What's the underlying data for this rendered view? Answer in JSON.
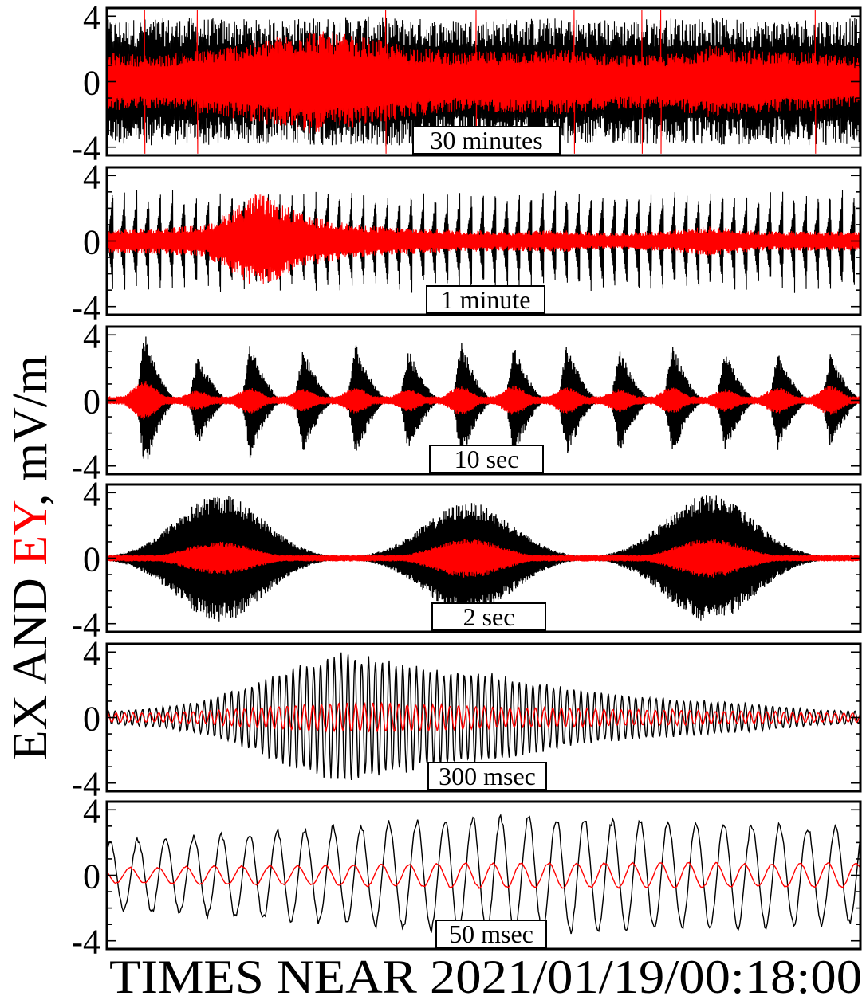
{
  "figure": {
    "ylabel_parts": [
      "EX AND ",
      "EY",
      ", mV/m"
    ],
    "xlabel": "TIMES NEAR 2021/01/19/00:18:00",
    "colors": {
      "ex": "#000000",
      "ey": "#ff0000",
      "frame": "#000000"
    }
  },
  "chart_data": [
    {
      "type": "line",
      "label": "30 minutes",
      "ylim": [
        -4.5,
        4.5
      ],
      "yticks": [
        4,
        0,
        -4
      ],
      "ytick_labels": [
        "4",
        "0",
        "-4"
      ],
      "series": [
        {
          "name": "EX",
          "color": "#000000",
          "envelope": [
            3.8,
            3.9,
            3.9,
            3.8,
            3.9,
            4.0,
            3.9,
            3.8,
            3.9,
            3.9,
            3.8,
            3.9,
            3.9,
            3.8,
            3.9,
            3.9
          ]
        },
        {
          "name": "EY",
          "color": "#ff0000",
          "envelope": [
            1.8,
            1.6,
            2.0,
            2.5,
            3.2,
            2.8,
            2.2,
            1.8,
            1.9,
            2.0,
            1.7,
            1.6,
            2.2,
            1.9,
            1.8,
            1.5
          ]
        }
      ]
    },
    {
      "type": "line",
      "label": "1 minute",
      "ylim": [
        -4.5,
        4.5
      ],
      "yticks": [
        4,
        0,
        -4
      ],
      "ytick_labels": [
        "4",
        "0",
        "-4"
      ],
      "burst_count": 63,
      "series": [
        {
          "name": "EX",
          "color": "#000000",
          "peak": 3.7
        },
        {
          "name": "EY",
          "color": "#ff0000",
          "envelope": [
            0.7,
            0.8,
            1.0,
            3.0,
            1.5,
            1.0,
            0.8,
            0.7,
            0.6,
            0.7,
            0.5,
            0.6,
            0.9,
            0.6,
            0.6,
            0.6
          ]
        }
      ]
    },
    {
      "type": "line",
      "label": "10 sec",
      "ylim": [
        -4.5,
        4.5
      ],
      "yticks": [
        4,
        0,
        -4
      ],
      "ytick_labels": [
        "4",
        "0",
        "-4"
      ],
      "bursts": [
        {
          "t": 0.05,
          "ex": 4.3,
          "ey": 1.2
        },
        {
          "t": 0.12,
          "ex": 2.8,
          "ey": 0.6
        },
        {
          "t": 0.19,
          "ex": 3.6,
          "ey": 0.8
        },
        {
          "t": 0.26,
          "ex": 3.3,
          "ey": 0.7
        },
        {
          "t": 0.33,
          "ex": 3.5,
          "ey": 0.8
        },
        {
          "t": 0.4,
          "ex": 3.2,
          "ey": 0.7
        },
        {
          "t": 0.47,
          "ex": 3.7,
          "ey": 0.9
        },
        {
          "t": 0.54,
          "ex": 3.5,
          "ey": 0.9
        },
        {
          "t": 0.61,
          "ex": 3.6,
          "ey": 0.8
        },
        {
          "t": 0.68,
          "ex": 3.3,
          "ey": 0.7
        },
        {
          "t": 0.75,
          "ex": 3.5,
          "ey": 0.8
        },
        {
          "t": 0.82,
          "ex": 3.2,
          "ey": 0.7
        },
        {
          "t": 0.89,
          "ex": 3.1,
          "ey": 0.8
        },
        {
          "t": 0.96,
          "ex": 3.0,
          "ey": 0.9
        }
      ]
    },
    {
      "type": "line",
      "label": "2 sec",
      "ylim": [
        -4.5,
        4.5
      ],
      "yticks": [
        4,
        0,
        -4
      ],
      "ytick_labels": [
        "4",
        "0",
        "-4"
      ],
      "bursts": [
        {
          "t": 0.15,
          "ex": 3.9,
          "ey": 1.0
        },
        {
          "t": 0.48,
          "ex": 3.4,
          "ey": 1.2
        },
        {
          "t": 0.8,
          "ex": 3.9,
          "ey": 1.2
        }
      ]
    },
    {
      "type": "line",
      "label": "300 msec",
      "ylim": [
        -4.5,
        4.5
      ],
      "yticks": [
        4,
        0,
        -4
      ],
      "ytick_labels": [
        "4",
        "0",
        "-4"
      ],
      "cycles": 110,
      "series": [
        {
          "name": "EX",
          "color": "#000000",
          "envelope": [
            0.4,
            0.6,
            1.0,
            2.0,
            3.2,
            4.0,
            3.6,
            3.0,
            2.8,
            2.3,
            1.7,
            1.4,
            1.2,
            1.0,
            0.8,
            0.5,
            0.4
          ]
        },
        {
          "name": "EY",
          "color": "#ff0000",
          "envelope": [
            0.3,
            0.3,
            0.4,
            0.6,
            0.8,
            0.9,
            0.9,
            0.8,
            0.7,
            0.6,
            0.6,
            0.5,
            0.5,
            0.4,
            0.4,
            0.3,
            0.3
          ]
        }
      ]
    },
    {
      "type": "line",
      "label": "50 msec",
      "ylim": [
        -4.5,
        4.5
      ],
      "yticks": [
        4,
        0,
        -4
      ],
      "ytick_labels": [
        "4",
        "0",
        "-4"
      ],
      "cycles": 27,
      "series": [
        {
          "name": "EX",
          "color": "#000000",
          "envelope": [
            2.2,
            2.4,
            2.6,
            2.8,
            3.0,
            3.2,
            3.5,
            3.7,
            3.8,
            3.7,
            3.6,
            3.5,
            3.4,
            3.3,
            3.2,
            3.1
          ]
        },
        {
          "name": "EY",
          "color": "#ff0000",
          "envelope": [
            0.5,
            0.5,
            0.6,
            0.6,
            0.6,
            0.7,
            0.7,
            0.8,
            0.8,
            0.8,
            0.8,
            0.8,
            0.8,
            0.7,
            0.8,
            0.8
          ]
        }
      ]
    }
  ]
}
